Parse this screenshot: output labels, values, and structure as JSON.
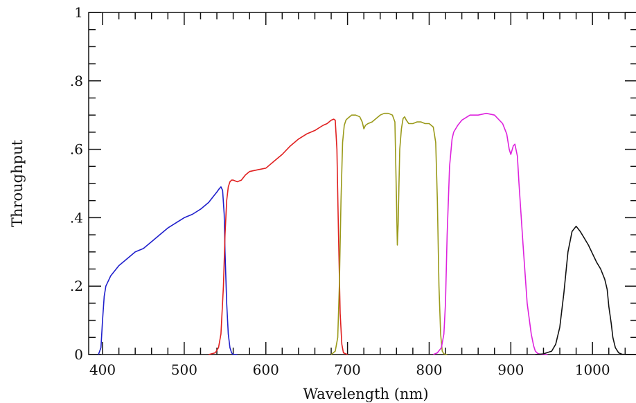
{
  "chart_data": {
    "type": "line",
    "title": "",
    "xlabel": "Wavelength (nm)",
    "ylabel": "Throughput",
    "xlim": [
      383,
      1055
    ],
    "ylim": [
      0,
      1
    ],
    "x_ticks": [
      400,
      500,
      600,
      700,
      800,
      900,
      1000
    ],
    "x_tick_labels": [
      "400",
      "500",
      "600",
      "700",
      "800",
      "900",
      "1000"
    ],
    "y_ticks": [
      0,
      0.2,
      0.4,
      0.6,
      0.8,
      1
    ],
    "y_tick_labels": [
      "0",
      ".2",
      ".4",
      ".6",
      ".8",
      "1"
    ],
    "grid": false,
    "legend": "none",
    "series": [
      {
        "color": "#2020cc",
        "x": [
          395,
          398,
          400,
          402,
          404,
          407,
          410,
          415,
          420,
          430,
          440,
          450,
          460,
          470,
          480,
          490,
          500,
          510,
          520,
          530,
          535,
          540,
          543,
          545,
          547,
          549,
          550,
          552,
          554,
          556,
          558,
          560,
          565
        ],
        "y": [
          0,
          0.02,
          0.1,
          0.17,
          0.2,
          0.215,
          0.23,
          0.245,
          0.26,
          0.28,
          0.3,
          0.31,
          0.33,
          0.35,
          0.37,
          0.385,
          0.4,
          0.41,
          0.425,
          0.445,
          0.46,
          0.475,
          0.485,
          0.49,
          0.48,
          0.41,
          0.3,
          0.15,
          0.06,
          0.02,
          0.005,
          0,
          0
        ]
      },
      {
        "color": "#e02020",
        "x": [
          530,
          538,
          542,
          545,
          548,
          550,
          552,
          554,
          556,
          558,
          560,
          565,
          570,
          575,
          580,
          590,
          600,
          610,
          620,
          630,
          640,
          650,
          660,
          670,
          675,
          680,
          683,
          685,
          687,
          689,
          691,
          693,
          695,
          700
        ],
        "y": [
          0,
          0.005,
          0.02,
          0.06,
          0.2,
          0.35,
          0.45,
          0.49,
          0.505,
          0.51,
          0.51,
          0.505,
          0.51,
          0.525,
          0.535,
          0.54,
          0.545,
          0.565,
          0.585,
          0.61,
          0.63,
          0.645,
          0.655,
          0.67,
          0.675,
          0.685,
          0.688,
          0.685,
          0.6,
          0.35,
          0.12,
          0.03,
          0.005,
          0
        ]
      },
      {
        "color": "#9a9a1a",
        "x": [
          680,
          685,
          688,
          690,
          692,
          694,
          696,
          698,
          700,
          705,
          710,
          715,
          718,
          720,
          722,
          725,
          730,
          735,
          740,
          745,
          750,
          755,
          758,
          760,
          761,
          762,
          763,
          764,
          766,
          768,
          770,
          772,
          775,
          780,
          785,
          790,
          795,
          800,
          805,
          808,
          810,
          812,
          814,
          816,
          818,
          822
        ],
        "y": [
          0,
          0.01,
          0.05,
          0.2,
          0.45,
          0.62,
          0.67,
          0.685,
          0.69,
          0.7,
          0.7,
          0.695,
          0.68,
          0.66,
          0.67,
          0.675,
          0.68,
          0.69,
          0.7,
          0.705,
          0.705,
          0.7,
          0.68,
          0.45,
          0.32,
          0.38,
          0.5,
          0.6,
          0.66,
          0.69,
          0.695,
          0.685,
          0.675,
          0.675,
          0.68,
          0.68,
          0.675,
          0.675,
          0.665,
          0.62,
          0.45,
          0.2,
          0.06,
          0.01,
          0.002,
          0
        ]
      },
      {
        "color": "#dd22dd",
        "x": [
          805,
          810,
          815,
          818,
          820,
          822,
          825,
          828,
          830,
          835,
          840,
          850,
          860,
          870,
          880,
          890,
          895,
          898,
          900,
          903,
          905,
          908,
          910,
          915,
          920,
          925,
          928,
          930,
          933,
          936,
          940,
          945
        ],
        "y": [
          0,
          0.005,
          0.02,
          0.06,
          0.15,
          0.35,
          0.55,
          0.63,
          0.65,
          0.67,
          0.685,
          0.7,
          0.7,
          0.705,
          0.7,
          0.675,
          0.645,
          0.6,
          0.585,
          0.61,
          0.615,
          0.58,
          0.5,
          0.32,
          0.15,
          0.06,
          0.025,
          0.01,
          0.003,
          0.001,
          0,
          0
        ]
      },
      {
        "color": "#111111",
        "x": [
          930,
          940,
          950,
          955,
          960,
          965,
          970,
          975,
          980,
          985,
          990,
          995,
          1000,
          1005,
          1010,
          1015,
          1018,
          1020,
          1023,
          1025,
          1028,
          1032,
          1036,
          1045,
          1055
        ],
        "y": [
          0,
          0.002,
          0.01,
          0.03,
          0.08,
          0.18,
          0.3,
          0.36,
          0.375,
          0.36,
          0.34,
          0.32,
          0.295,
          0.27,
          0.25,
          0.22,
          0.19,
          0.14,
          0.09,
          0.05,
          0.02,
          0.005,
          0.001,
          0,
          0
        ]
      }
    ]
  }
}
